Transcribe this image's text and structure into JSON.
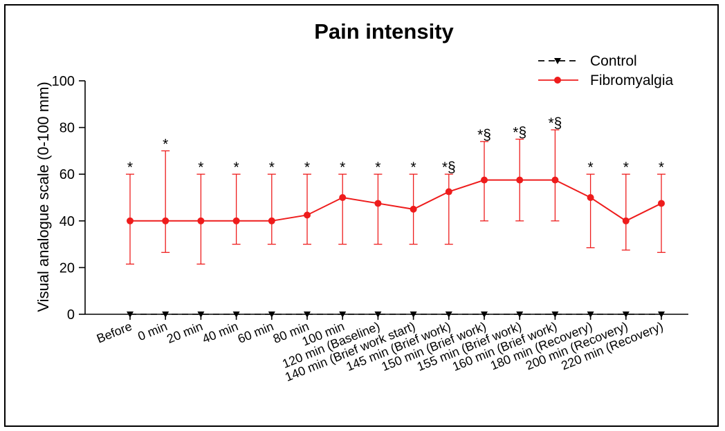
{
  "chart_data": {
    "type": "line",
    "title": "Pain intensity",
    "ylabel": "Visual analogue scale (0-100 mm)",
    "xlabel": "",
    "ylim": [
      0,
      100
    ],
    "yticks": [
      0,
      20,
      40,
      60,
      80,
      100
    ],
    "grid": false,
    "legend_position": "top-right",
    "categories": [
      "Before",
      "0 min",
      "20 min",
      "40 min",
      "60 min",
      "80 min",
      "100 min",
      "120 min (Baseline)",
      "140 min (Brief work start)",
      "145 min (Brief work)",
      "150 min (Brief work)",
      "155 min (Brief work)",
      "160 min (Brief work)",
      "180 min (Recovery)",
      "200 min (Recovery)",
      "220 min (Recovery)"
    ],
    "series": [
      {
        "name": "Control",
        "color": "#000000",
        "marker": "triangle-down",
        "line_style": "dashed",
        "values": [
          0,
          0,
          0,
          0,
          0,
          0,
          0,
          0,
          0,
          0,
          0,
          0,
          0,
          0,
          0,
          0
        ]
      },
      {
        "name": "Fibromyalgia",
        "color": "#ee1c1c",
        "marker": "circle",
        "line_style": "solid",
        "values": [
          40,
          40,
          40,
          40,
          40,
          42.5,
          50,
          47.5,
          45,
          52.5,
          57.5,
          57.5,
          57.5,
          50,
          40,
          47.5
        ],
        "error_low": [
          21.5,
          26.5,
          21.5,
          30,
          30,
          30,
          30,
          30,
          30,
          30,
          40,
          40,
          40,
          28.5,
          27.5,
          26.5
        ],
        "error_high": [
          60,
          70,
          60,
          60,
          60,
          60,
          60,
          60,
          60,
          60,
          74,
          75,
          79,
          60,
          60,
          60
        ]
      }
    ],
    "annotations": [
      "*",
      "*",
      "*",
      "*",
      "*",
      "*",
      "*",
      "*",
      "*",
      "*§",
      "*§",
      "*§",
      "*§",
      "*",
      "*",
      "*"
    ]
  }
}
